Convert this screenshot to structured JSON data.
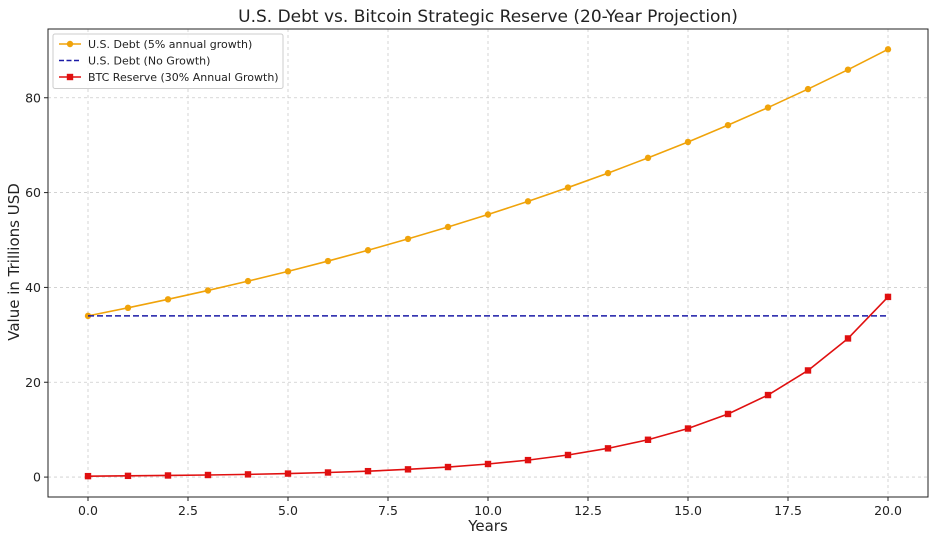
{
  "chart_data": {
    "type": "line",
    "title": "U.S. Debt vs. Bitcoin Strategic Reserve (20-Year Projection)",
    "xlabel": "Years",
    "ylabel": "Value in Trillions USD",
    "xlim": [
      -1,
      21
    ],
    "ylim": [
      -4.2,
      94.5
    ],
    "x_ticks": [
      0.0,
      2.5,
      5.0,
      7.5,
      10.0,
      12.5,
      15.0,
      17.5,
      20.0
    ],
    "x_tick_labels": [
      "0.0",
      "2.5",
      "5.0",
      "7.5",
      "10.0",
      "12.5",
      "15.0",
      "17.5",
      "20.0"
    ],
    "y_ticks": [
      0,
      20,
      40,
      60,
      80
    ],
    "y_tick_labels": [
      "0",
      "20",
      "40",
      "60",
      "80"
    ],
    "grid": true,
    "legend_position": "top-left",
    "x": [
      0,
      1,
      2,
      3,
      4,
      5,
      6,
      7,
      8,
      9,
      10,
      11,
      12,
      13,
      14,
      15,
      16,
      17,
      18,
      19,
      20
    ],
    "series": [
      {
        "name": "U.S. Debt (5% annual growth)",
        "color": "#f0a30a",
        "style": "solid",
        "marker": "circle",
        "values": [
          34.0,
          35.7,
          37.49,
          39.36,
          41.33,
          43.39,
          45.56,
          47.84,
          50.23,
          52.75,
          55.38,
          58.15,
          61.06,
          64.11,
          67.32,
          70.68,
          74.22,
          77.93,
          81.83,
          85.92,
          90.21
        ]
      },
      {
        "name": "U.S. Debt (No Growth)",
        "color": "#1a1aa6",
        "style": "dashed",
        "marker": "none",
        "values": [
          34,
          34,
          34,
          34,
          34,
          34,
          34,
          34,
          34,
          34,
          34,
          34,
          34,
          34,
          34,
          34,
          34,
          34,
          34,
          34,
          34
        ]
      },
      {
        "name": "BTC Reserve (30% Annual Growth)",
        "color": "#e01010",
        "style": "solid",
        "marker": "square",
        "values": [
          0.2,
          0.26,
          0.34,
          0.44,
          0.57,
          0.74,
          0.97,
          1.25,
          1.63,
          2.12,
          2.76,
          3.58,
          4.66,
          6.06,
          7.87,
          10.24,
          13.31,
          17.3,
          22.49,
          29.24,
          38.0
        ]
      }
    ]
  }
}
